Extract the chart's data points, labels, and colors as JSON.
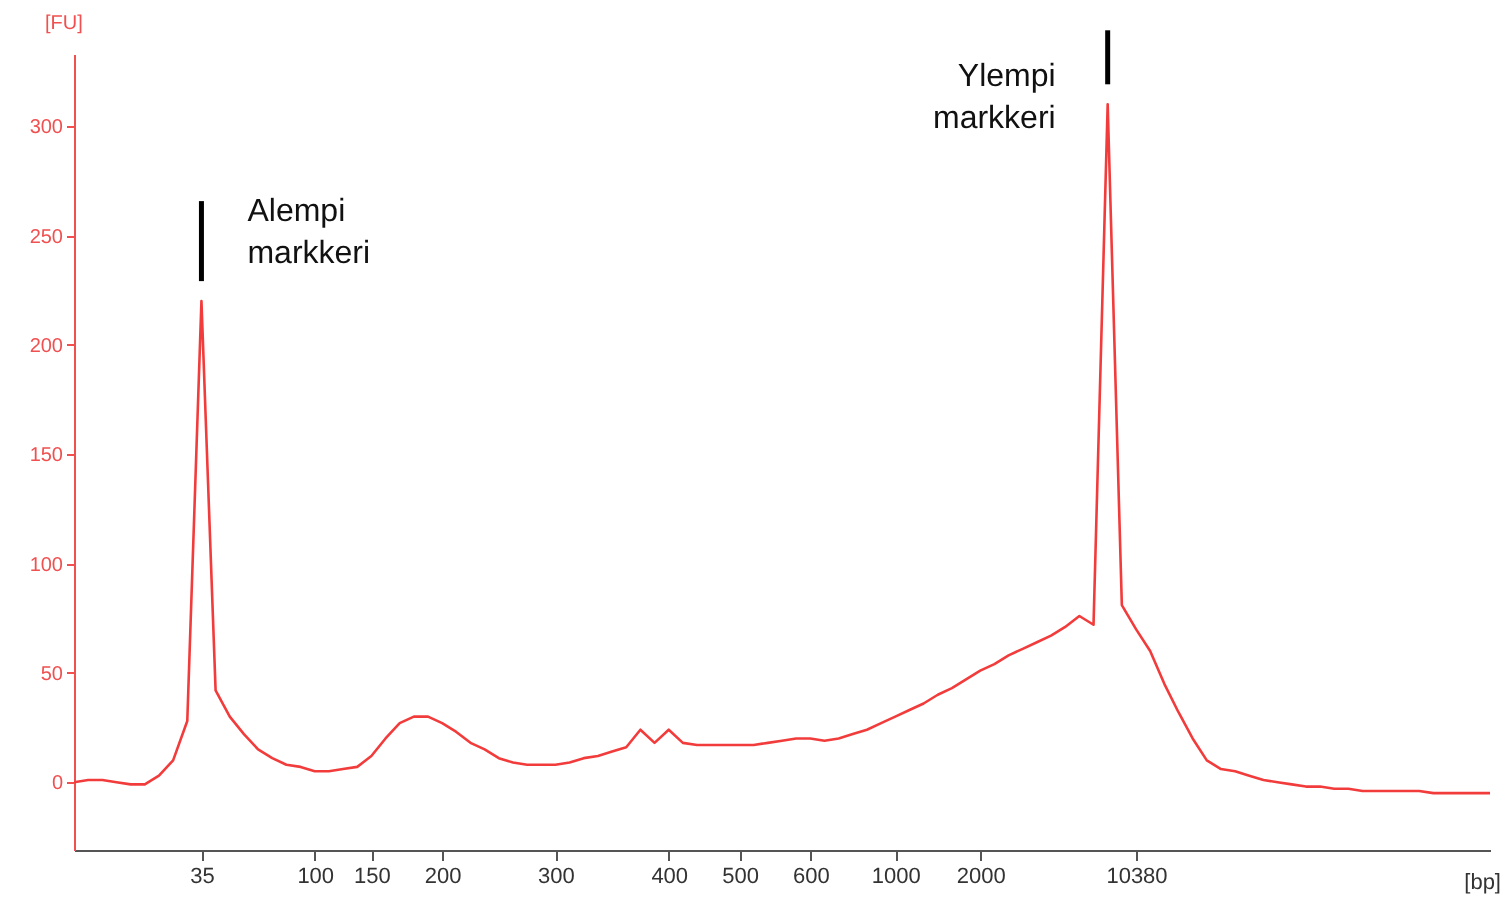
{
  "chart_data": {
    "type": "line",
    "xlabel": "[bp]",
    "ylabel": "[FU]",
    "ylim": [
      -31,
      333
    ],
    "yticks": [
      0,
      50,
      100,
      150,
      200,
      250,
      300
    ],
    "grid": false,
    "line_style": "solid",
    "categories": [
      null,
      null,
      null,
      null,
      null,
      null,
      null,
      null,
      null,
      "35",
      null,
      null,
      null,
      null,
      null,
      null,
      null,
      "100",
      null,
      null,
      null,
      "150",
      null,
      null,
      null,
      null,
      "200",
      null,
      null,
      null,
      null,
      null,
      null,
      null,
      "300",
      null,
      null,
      null,
      null,
      null,
      null,
      null,
      "400",
      null,
      null,
      null,
      null,
      "500",
      null,
      null,
      null,
      null,
      "600",
      null,
      null,
      null,
      null,
      null,
      "1000",
      null,
      null,
      null,
      null,
      null,
      "2000",
      null,
      null,
      null,
      null,
      null,
      null,
      null,
      null,
      null,
      null,
      "10380",
      null,
      null,
      null,
      null,
      null,
      null,
      null,
      null,
      null,
      null,
      null,
      null,
      null,
      null,
      null,
      null,
      null,
      null,
      null,
      null,
      null,
      null,
      null,
      null,
      null
    ],
    "annotations": [
      {
        "text": "Alempi markkeri",
        "x": "35",
        "y": 220
      },
      "Ylempi markkeri"
    ],
    "series": [
      {
        "color": "#f23c3c",
        "values": [
          0,
          1,
          1,
          0,
          -1,
          -1,
          3,
          10,
          28,
          220,
          42,
          30,
          22,
          15,
          11,
          8,
          7,
          5,
          5,
          6,
          7,
          12,
          20,
          27,
          30,
          30,
          27,
          23,
          18,
          15,
          11,
          9,
          8,
          8,
          8,
          9,
          11,
          12,
          14,
          16,
          24,
          18,
          24,
          18,
          17,
          17,
          17,
          17,
          17,
          18,
          19,
          20,
          20,
          19,
          20,
          22,
          24,
          27,
          30,
          33,
          36,
          40,
          43,
          47,
          51,
          54,
          58,
          61,
          64,
          67,
          71,
          76,
          72,
          310,
          81,
          70,
          60,
          45,
          32,
          20,
          10,
          6,
          5,
          3,
          1,
          0,
          -1,
          -2,
          -2,
          -3,
          -3,
          -4,
          -4,
          -4,
          -4,
          -4,
          -5,
          -5,
          -5,
          -5,
          -5
        ]
      }
    ]
  }
}
